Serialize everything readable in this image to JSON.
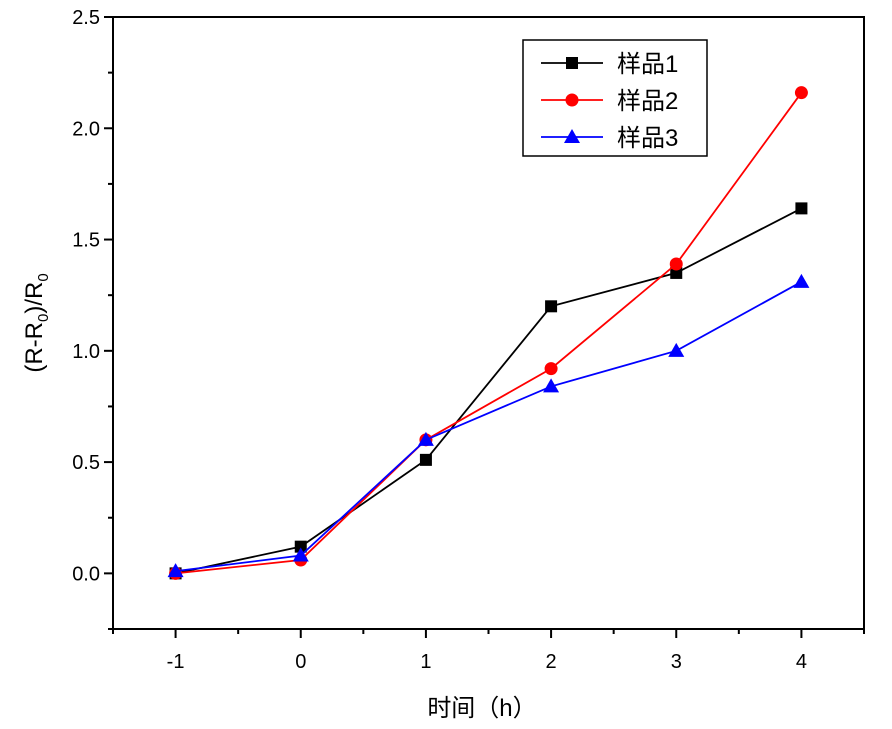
{
  "chart_data": {
    "type": "line",
    "title": "",
    "xlabel": "时间（h）",
    "ylabel_main": "(R-R",
    "ylabel_sub1": "0",
    "ylabel_mid": ")/R",
    "ylabel_sub2": "0",
    "x": [
      -1,
      0,
      1,
      2,
      3,
      4
    ],
    "xlim": [
      -1.5,
      4.5
    ],
    "ylim": [
      -0.25,
      2.5
    ],
    "xticks": [
      "-1",
      "0",
      "1",
      "2",
      "3",
      "4"
    ],
    "yticks": [
      "0.0",
      "0.5",
      "1.0",
      "1.5",
      "2.0",
      "2.5"
    ],
    "legend_position": "top-right",
    "grid": false,
    "series": [
      {
        "name": "样品1",
        "color": "#000000",
        "marker": "square",
        "values": [
          0.0,
          0.12,
          0.51,
          1.2,
          1.35,
          1.64
        ]
      },
      {
        "name": "样品2",
        "color": "#ff0000",
        "marker": "circle",
        "values": [
          0.0,
          0.06,
          0.6,
          0.92,
          1.39,
          2.16
        ]
      },
      {
        "name": "样品3",
        "color": "#0000ff",
        "marker": "triangle",
        "values": [
          0.01,
          0.08,
          0.6,
          0.84,
          1.0,
          1.31
        ]
      }
    ]
  }
}
